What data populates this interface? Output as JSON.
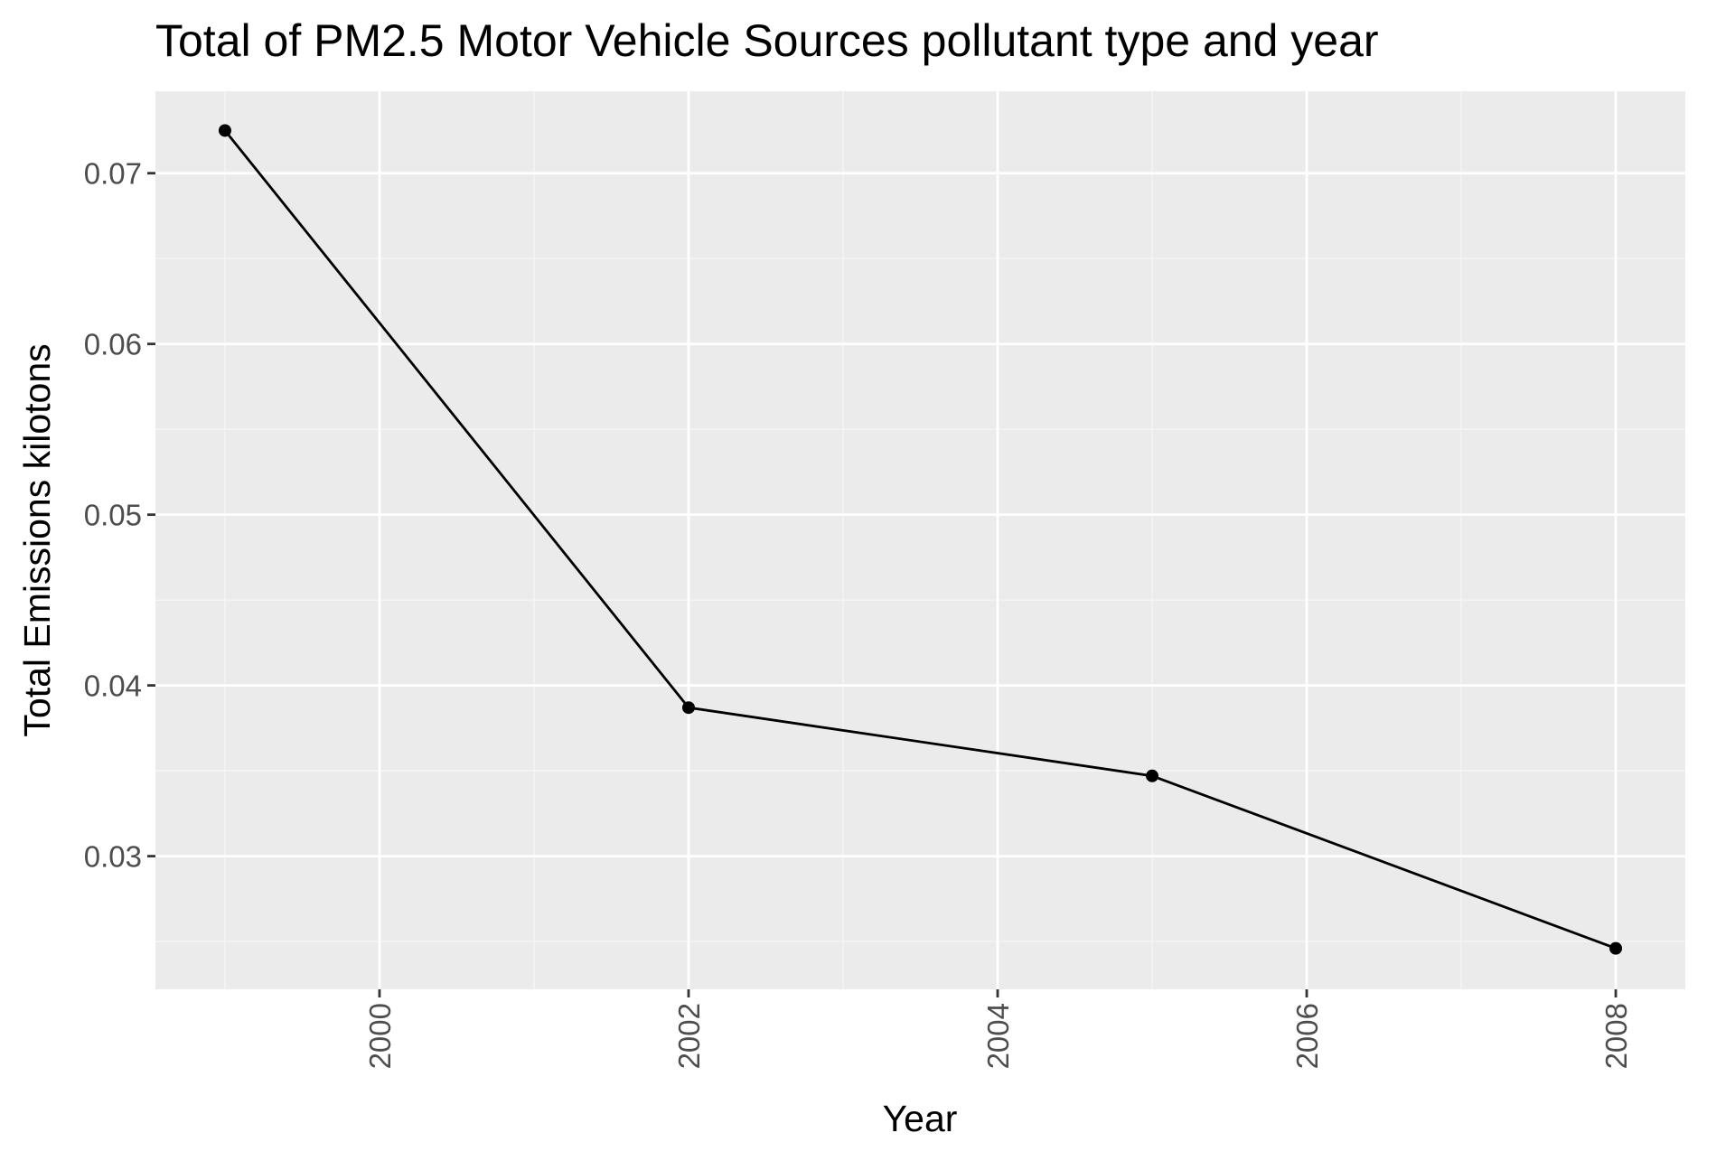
{
  "chart_data": {
    "type": "line",
    "title": "Total of PM2.5 Motor  Vehicle Sources pollutant type and year",
    "xlabel": "Year",
    "ylabel": "Total Emissions kilotons",
    "xlim": [
      1998.55,
      2008.45
    ],
    "ylim": [
      0.0222,
      0.0748
    ],
    "x_ticks": [
      2000,
      2002,
      2004,
      2006,
      2008
    ],
    "x_tick_labels": [
      "2000",
      "2002",
      "2004",
      "2006",
      "2008"
    ],
    "y_ticks": [
      0.03,
      0.04,
      0.05,
      0.06,
      0.07
    ],
    "y_tick_labels": [
      "0.03",
      "0.04",
      "0.05",
      "0.06",
      "0.07"
    ],
    "grid": true,
    "x_tick_label_rotation": "vertical",
    "series": [
      {
        "x": [
          1999,
          2002,
          2005,
          2008
        ],
        "values": [
          0.0725,
          0.0387,
          0.0347,
          0.0246
        ]
      }
    ],
    "colors": {
      "panel_background": "#ebebeb",
      "grid_major": "#ffffff",
      "grid_minor": "#f5f5f5",
      "line": "#000000",
      "point": "#000000",
      "tick_label": "#4d4d4d",
      "tick_mark": "#333333"
    }
  }
}
